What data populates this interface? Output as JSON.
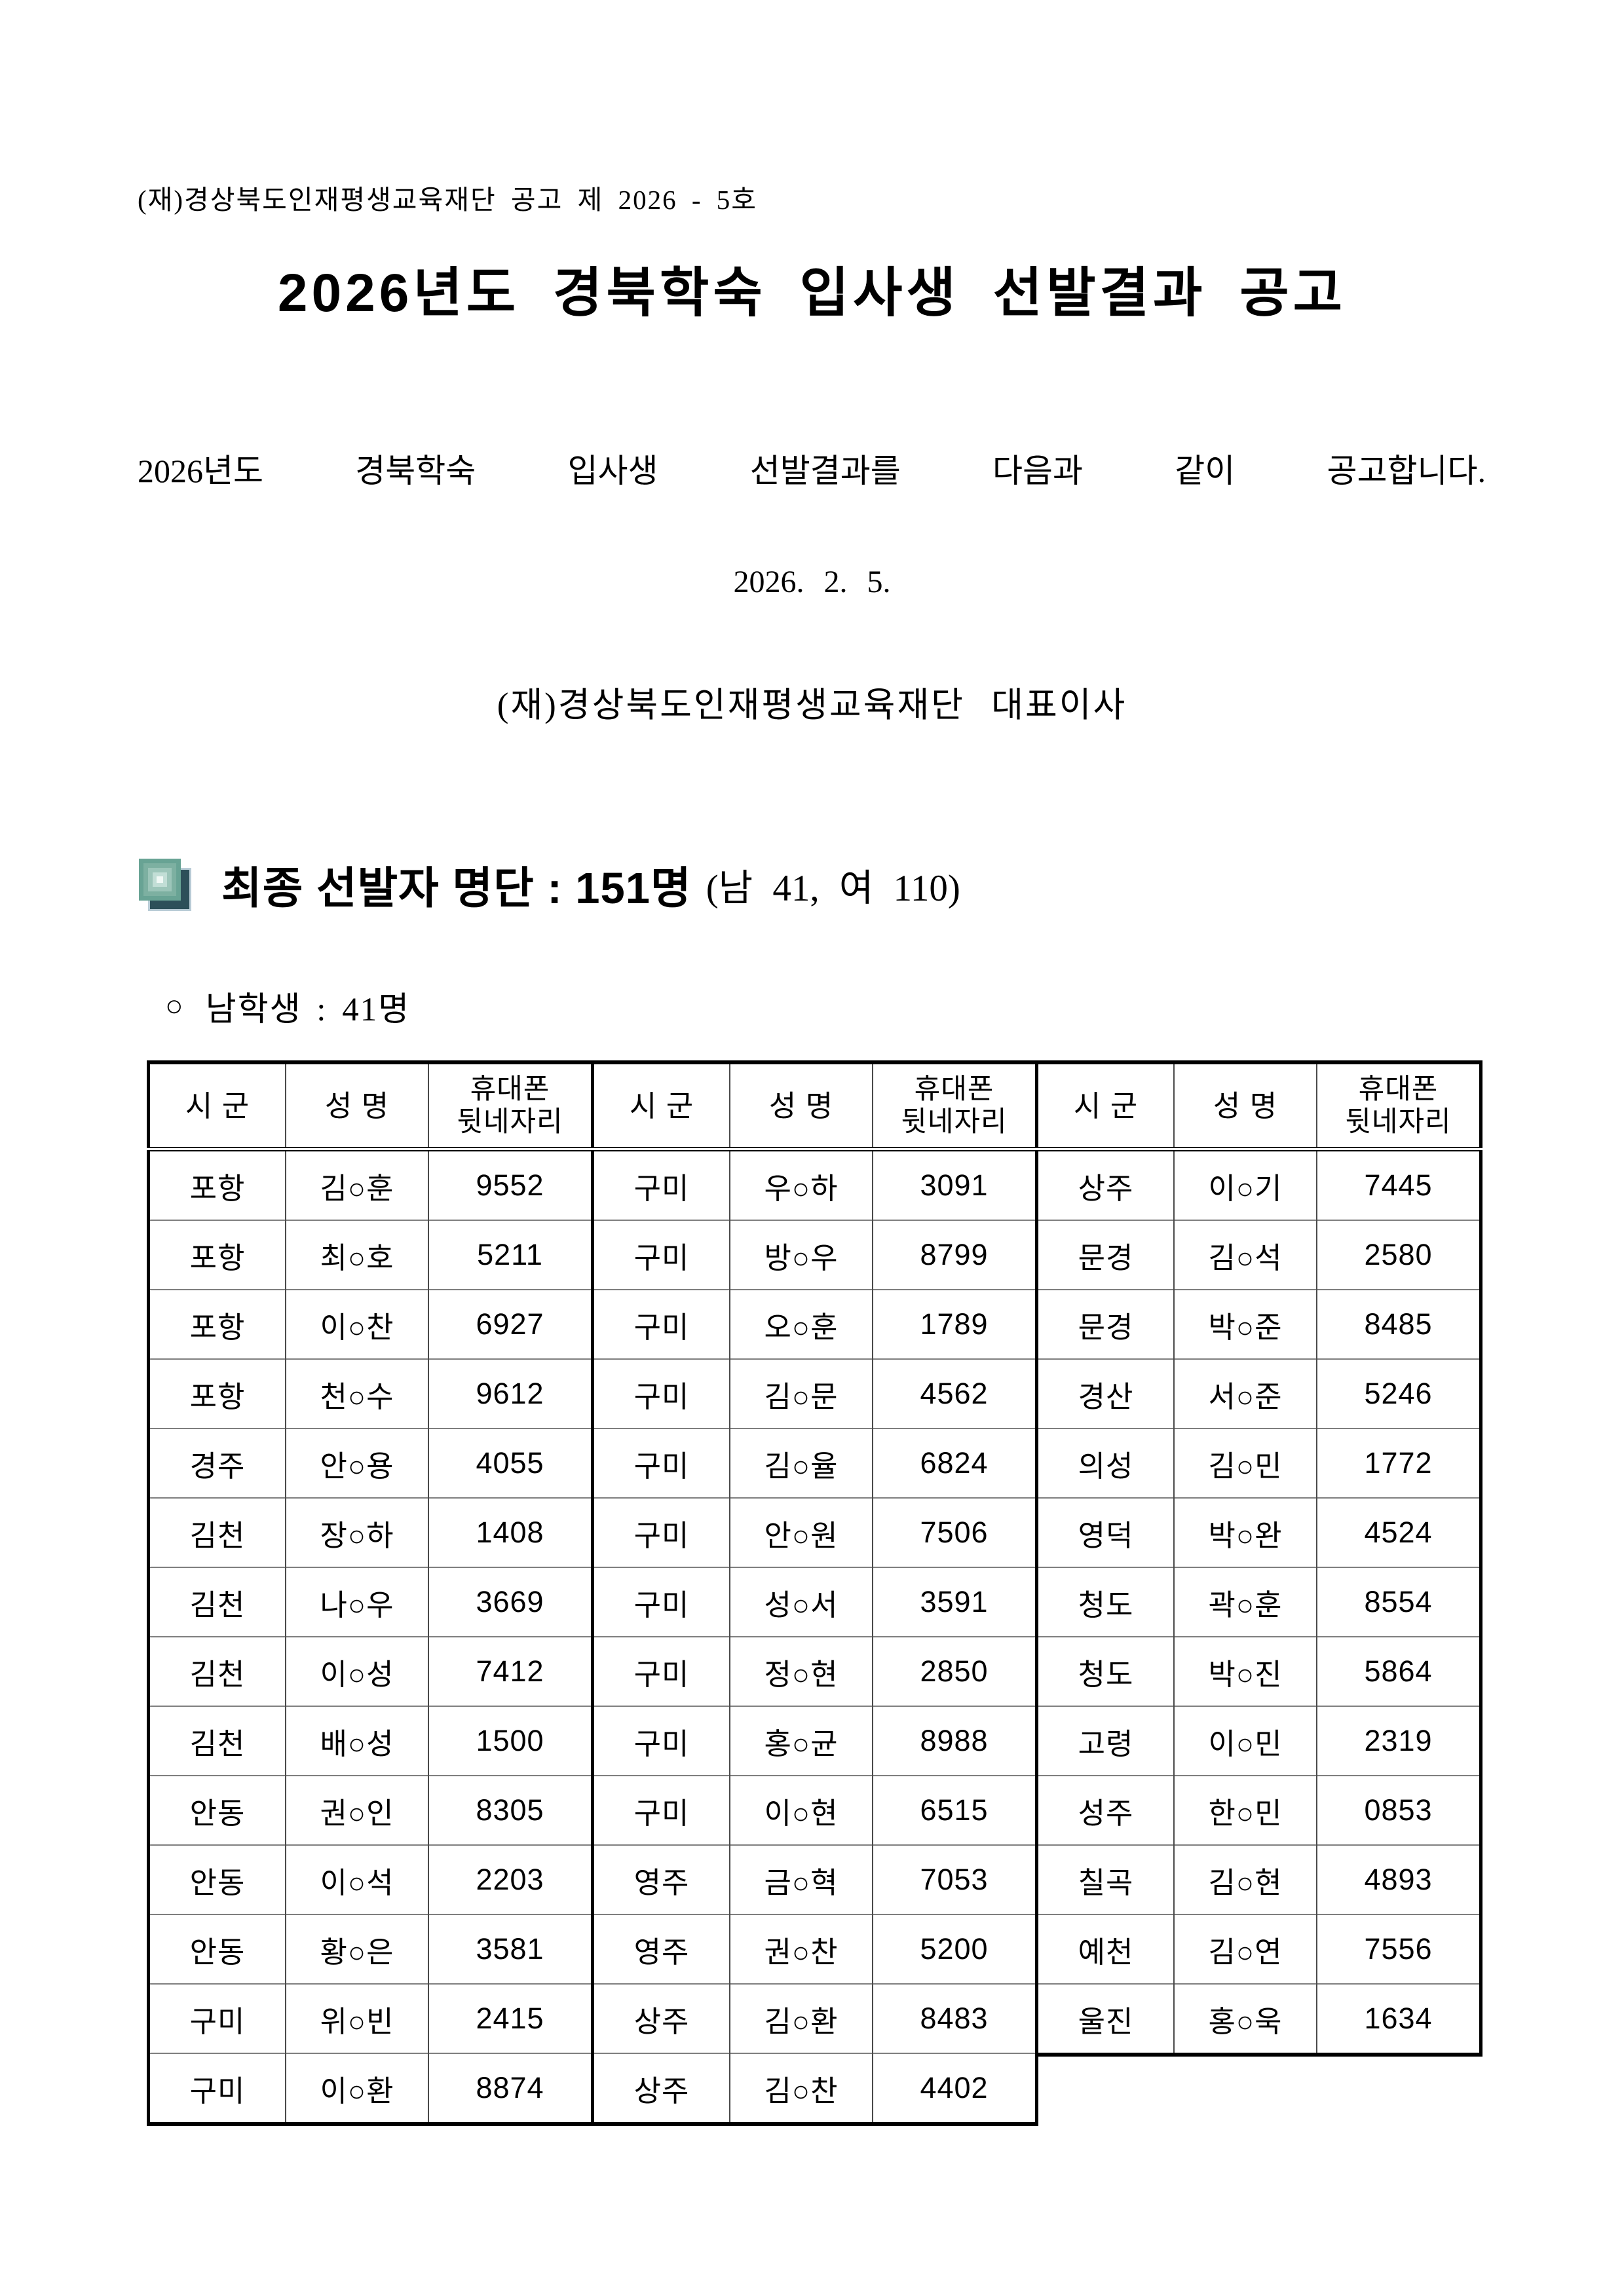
{
  "document": {
    "notice_number": "(재)경상북도인재평생교육재단 공고 제 2026 - 5호",
    "title": "2026년도 경북학숙 입사생 선발결과 공고",
    "body": "2026년도 경북학숙 입사생 선발결과를 다음과 같이 공고합니다.",
    "date": "2026. 2. 5.",
    "signature": "(재)경상북도인재평생교육재단 대표이사"
  },
  "section": {
    "heading": "최종 선발자 명단 : 151명",
    "heading_note": "(남 41, 여 110)",
    "subheading_bullet": "○",
    "subheading": "남학생 : 41명"
  },
  "table": {
    "headers": [
      "시 군",
      "성 명",
      "휴대폰\n뒷네자리"
    ],
    "groups": [
      {
        "rows": [
          [
            "포항",
            "김○훈",
            "9552"
          ],
          [
            "포항",
            "최○호",
            "5211"
          ],
          [
            "포항",
            "이○찬",
            "6927"
          ],
          [
            "포항",
            "천○수",
            "9612"
          ],
          [
            "경주",
            "안○용",
            "4055"
          ],
          [
            "김천",
            "장○하",
            "1408"
          ],
          [
            "김천",
            "나○우",
            "3669"
          ],
          [
            "김천",
            "이○성",
            "7412"
          ],
          [
            "김천",
            "배○성",
            "1500"
          ],
          [
            "안동",
            "권○인",
            "8305"
          ],
          [
            "안동",
            "이○석",
            "2203"
          ],
          [
            "안동",
            "황○은",
            "3581"
          ],
          [
            "구미",
            "위○빈",
            "2415"
          ],
          [
            "구미",
            "이○환",
            "8874"
          ]
        ]
      },
      {
        "rows": [
          [
            "구미",
            "우○하",
            "3091"
          ],
          [
            "구미",
            "방○우",
            "8799"
          ],
          [
            "구미",
            "오○훈",
            "1789"
          ],
          [
            "구미",
            "김○문",
            "4562"
          ],
          [
            "구미",
            "김○율",
            "6824"
          ],
          [
            "구미",
            "안○원",
            "7506"
          ],
          [
            "구미",
            "성○서",
            "3591"
          ],
          [
            "구미",
            "정○현",
            "2850"
          ],
          [
            "구미",
            "홍○균",
            "8988"
          ],
          [
            "구미",
            "이○현",
            "6515"
          ],
          [
            "영주",
            "금○혁",
            "7053"
          ],
          [
            "영주",
            "권○찬",
            "5200"
          ],
          [
            "상주",
            "김○환",
            "8483"
          ],
          [
            "상주",
            "김○찬",
            "4402"
          ]
        ]
      },
      {
        "rows": [
          [
            "상주",
            "이○기",
            "7445"
          ],
          [
            "문경",
            "김○석",
            "2580"
          ],
          [
            "문경",
            "박○준",
            "8485"
          ],
          [
            "경산",
            "서○준",
            "5246"
          ],
          [
            "의성",
            "김○민",
            "1772"
          ],
          [
            "영덕",
            "박○완",
            "4524"
          ],
          [
            "청도",
            "곽○훈",
            "8554"
          ],
          [
            "청도",
            "박○진",
            "5864"
          ],
          [
            "고령",
            "이○민",
            "2319"
          ],
          [
            "성주",
            "한○민",
            "0853"
          ],
          [
            "칠곡",
            "김○현",
            "4893"
          ],
          [
            "예천",
            "김○연",
            "7556"
          ],
          [
            "울진",
            "홍○욱",
            "1634"
          ]
        ]
      }
    ]
  },
  "colors": {
    "icon_front_teal": "#68a394",
    "icon_back_slate": "#2d4f59",
    "table_border_black": "#000000",
    "row_line_gray": "#7f7f7f"
  }
}
